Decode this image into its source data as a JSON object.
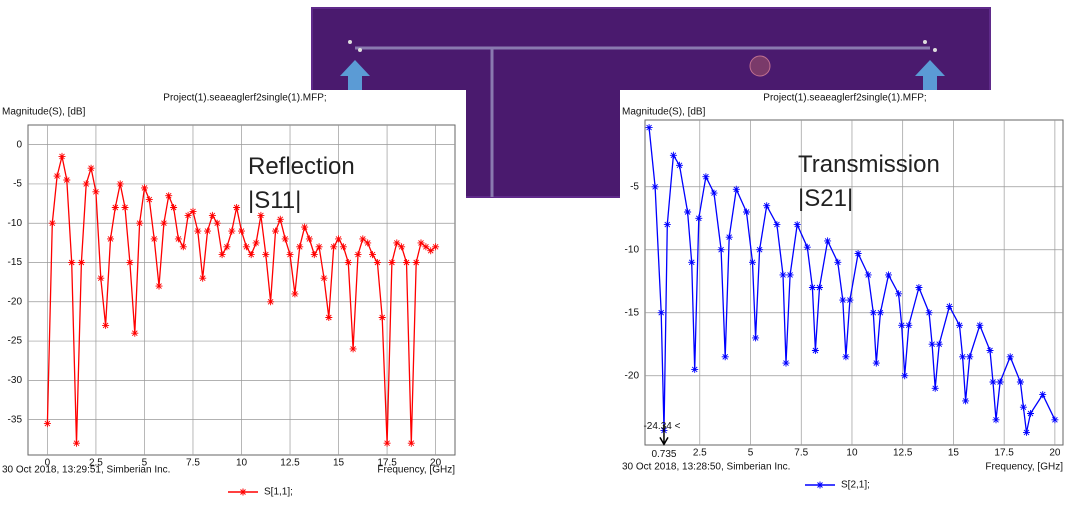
{
  "chart_data": [
    {
      "type": "line",
      "title": "Project(1).seaeaglerf2single(1).MFP;",
      "y_label": "Magnitude(S), [dB]",
      "x_label": "Frequency, [GHz]",
      "footer": "30 Oct 2018, 13:29:51, Simberian Inc.",
      "overlay_label": [
        "Reflection",
        "|S11|"
      ],
      "x": [
        0,
        0.25,
        0.5,
        0.75,
        1,
        1.25,
        1.5,
        1.75,
        2,
        2.25,
        2.5,
        2.75,
        3,
        3.25,
        3.5,
        3.75,
        4,
        4.25,
        4.5,
        4.75,
        5,
        5.25,
        5.5,
        5.75,
        6,
        6.25,
        6.5,
        6.75,
        7,
        7.25,
        7.5,
        7.75,
        8,
        8.25,
        8.5,
        8.75,
        9,
        9.25,
        9.5,
        9.75,
        10,
        10.25,
        10.5,
        10.75,
        11,
        11.25,
        11.5,
        11.75,
        12,
        12.25,
        12.5,
        12.75,
        13,
        13.25,
        13.5,
        13.75,
        14,
        14.25,
        14.5,
        14.75,
        15,
        15.25,
        15.5,
        15.75,
        16,
        16.25,
        16.5,
        16.75,
        17,
        17.25,
        17.5,
        17.75,
        18,
        18.25,
        18.5,
        18.75,
        19,
        19.25,
        19.5,
        19.75,
        20
      ],
      "series": [
        {
          "name": "S[1,1];",
          "color": "#ff0000",
          "values": [
            -35.5,
            -10,
            -4,
            -1.5,
            -4.5,
            -15,
            -38,
            -15,
            -5,
            -3,
            -6,
            -17,
            -23,
            -12,
            -8,
            -5,
            -8,
            -15,
            -24,
            -10,
            -5.5,
            -7,
            -12,
            -18,
            -10,
            -6.5,
            -8,
            -12,
            -13,
            -9,
            -8.5,
            -11,
            -17,
            -11,
            -9,
            -10,
            -14,
            -13,
            -11,
            -8,
            -11,
            -13,
            -14,
            -12.5,
            -9,
            -14,
            -20,
            -11,
            -9.5,
            -12,
            -14,
            -19,
            -13,
            -10.5,
            -12,
            -14,
            -13,
            -17,
            -22,
            -13,
            -12,
            -13,
            -15,
            -26,
            -14,
            -12,
            -12.5,
            -14,
            -15,
            -22,
            -38,
            -15,
            -12.5,
            -13,
            -15,
            -38,
            -15,
            -12.5,
            -13,
            -13.5,
            -13
          ]
        }
      ],
      "xlim": [
        -1,
        21
      ],
      "ylim": [
        -39.5,
        2.5
      ],
      "xticks": [
        0,
        2.5,
        5,
        7.5,
        10,
        12.5,
        15,
        17.5,
        20
      ],
      "yticks": [
        0,
        -5,
        -10,
        -15,
        -20,
        -25,
        -30,
        -35
      ],
      "grid": true
    },
    {
      "type": "line",
      "title": "Project(1).seaeaglerf2single(1).MFP;",
      "y_label": "Magnitude(S), [dB]",
      "x_label": "Frequency, [GHz]",
      "footer": "30 Oct 2018, 13:28:50, Simberian Inc.",
      "overlay_label": [
        "Transmission",
        "|S21|"
      ],
      "x": [
        0,
        0.3,
        0.6,
        0.735,
        0.9,
        1.2,
        1.5,
        1.9,
        2.1,
        2.25,
        2.45,
        2.8,
        3.2,
        3.55,
        3.75,
        3.95,
        4.3,
        4.8,
        5.1,
        5.25,
        5.45,
        5.8,
        6.3,
        6.6,
        6.75,
        6.95,
        7.3,
        7.8,
        8.05,
        8.2,
        8.4,
        8.8,
        9.3,
        9.55,
        9.7,
        9.9,
        10.3,
        10.8,
        11.05,
        11.2,
        11.4,
        11.8,
        12.3,
        12.45,
        12.6,
        12.8,
        13.3,
        13.8,
        13.95,
        14.1,
        14.3,
        14.8,
        15.3,
        15.45,
        15.6,
        15.8,
        16.3,
        16.8,
        16.95,
        17.1,
        17.3,
        17.8,
        18.3,
        18.45,
        18.6,
        18.8,
        19.4,
        20
      ],
      "series": [
        {
          "name": "S[2,1];",
          "color": "#0000ff",
          "values": [
            -0.3,
            -5,
            -15,
            -24.34,
            -8,
            -2.5,
            -3.3,
            -7,
            -11,
            -19.5,
            -7.5,
            -4.2,
            -5.5,
            -10,
            -18.5,
            -9,
            -5.2,
            -7,
            -11,
            -17,
            -10,
            -6.5,
            -8,
            -12,
            -19,
            -12,
            -8,
            -9.8,
            -13,
            -18,
            -13,
            -9.3,
            -11,
            -14,
            -18.5,
            -14,
            -10.3,
            -12,
            -15,
            -19,
            -15,
            -12,
            -13.5,
            -16,
            -20,
            -16,
            -13,
            -15,
            -17.5,
            -21,
            -17.5,
            -14.5,
            -16,
            -18.5,
            -22,
            -18.5,
            -16,
            -18,
            -20.5,
            -23.5,
            -20.5,
            -18.5,
            -20.5,
            -22.5,
            -24.5,
            -23,
            -21.5,
            -23.5
          ]
        }
      ],
      "annotation": {
        "x": 0.735,
        "y": -24.34,
        "label": "-24.34 <"
      },
      "xlim": [
        -0.2,
        20.4
      ],
      "ylim": [
        -25.5,
        0.3
      ],
      "xticks": [
        2.5,
        5,
        7.5,
        10,
        12.5,
        15,
        17.5,
        20
      ],
      "yticks": [
        -5,
        -10,
        -15,
        -20
      ],
      "grid": true
    }
  ]
}
